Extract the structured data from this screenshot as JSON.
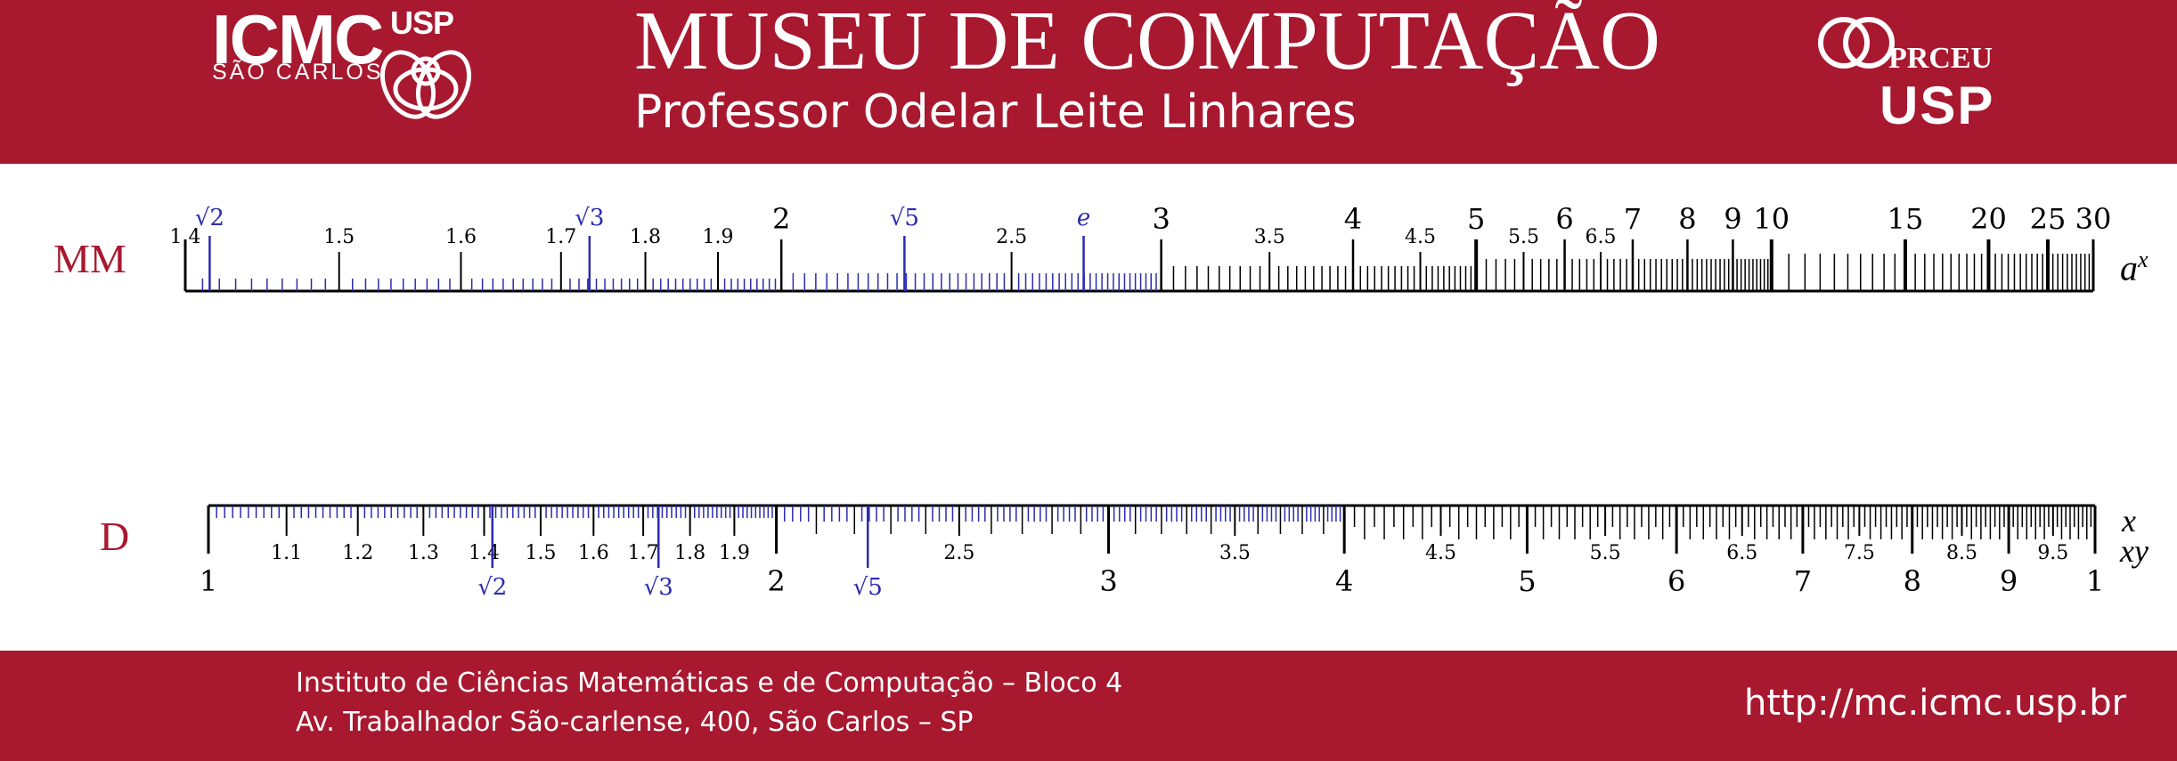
{
  "header": {
    "logo_icmc": "ICMC",
    "logo_usp_small": "USP",
    "logo_sao_carlos": "SÃO CARLOS",
    "title": "MUSEU DE COMPUTAÇÃO",
    "subtitle": "Professor Odelar Leite Linhares",
    "logo_prceu": "PRCEU",
    "logo_usp": "USP"
  },
  "footer": {
    "address_line1": "Instituto de Ciências Matemáticas e de Computação – Bloco 4",
    "address_line2": "Av. Trabalhador São-carlense, 400, São Carlos – SP",
    "url": "http://mc.icmc.usp.br"
  },
  "colors": {
    "brand": "#a8182f",
    "special_mark": "#2b2bb0",
    "ink": "#000000"
  },
  "scales": {
    "mm": {
      "name": "MM",
      "right_label_base": "a",
      "right_label_exp": "x",
      "range": [
        1.4,
        30
      ],
      "major": [
        {
          "v": 2,
          "t": "2"
        },
        {
          "v": 3,
          "t": "3"
        },
        {
          "v": 4,
          "t": "4"
        },
        {
          "v": 5,
          "t": "5"
        },
        {
          "v": 6,
          "t": "6"
        },
        {
          "v": 7,
          "t": "7"
        },
        {
          "v": 8,
          "t": "8"
        },
        {
          "v": 9,
          "t": "9"
        },
        {
          "v": 10,
          "t": "10"
        },
        {
          "v": 15,
          "t": "15"
        },
        {
          "v": 20,
          "t": "20"
        },
        {
          "v": 25,
          "t": "25"
        },
        {
          "v": 30,
          "t": "30"
        }
      ],
      "minor_labels": [
        {
          "v": 1.4,
          "t": "1.4"
        },
        {
          "v": 1.5,
          "t": "1.5"
        },
        {
          "v": 1.6,
          "t": "1.6"
        },
        {
          "v": 1.7,
          "t": "1.7"
        },
        {
          "v": 1.8,
          "t": "1.8"
        },
        {
          "v": 1.9,
          "t": "1.9"
        },
        {
          "v": 2.5,
          "t": "2.5"
        },
        {
          "v": 3.5,
          "t": "3.5"
        },
        {
          "v": 4.5,
          "t": "4.5"
        },
        {
          "v": 5.5,
          "t": "5.5"
        },
        {
          "v": 6.5,
          "t": "6.5"
        }
      ],
      "special": [
        {
          "v": 1.41421,
          "t": "√2"
        },
        {
          "v": 1.73205,
          "t": "√3"
        },
        {
          "v": 2.23607,
          "t": "√5"
        },
        {
          "v": 2.71828,
          "t": "e"
        }
      ]
    },
    "d": {
      "name": "D",
      "right_label_top": "x",
      "right_label_bottom": "xy",
      "range": [
        1,
        10
      ],
      "major": [
        {
          "v": 1,
          "t": "1"
        },
        {
          "v": 2,
          "t": "2"
        },
        {
          "v": 3,
          "t": "3"
        },
        {
          "v": 4,
          "t": "4"
        },
        {
          "v": 5,
          "t": "5"
        },
        {
          "v": 6,
          "t": "6"
        },
        {
          "v": 7,
          "t": "7"
        },
        {
          "v": 8,
          "t": "8"
        },
        {
          "v": 9,
          "t": "9"
        },
        {
          "v": 10,
          "t": "1"
        }
      ],
      "minor_labels": [
        {
          "v": 1.1,
          "t": "1.1"
        },
        {
          "v": 1.2,
          "t": "1.2"
        },
        {
          "v": 1.3,
          "t": "1.3"
        },
        {
          "v": 1.4,
          "t": "1.4"
        },
        {
          "v": 1.5,
          "t": "1.5"
        },
        {
          "v": 1.6,
          "t": "1.6"
        },
        {
          "v": 1.7,
          "t": "1.7"
        },
        {
          "v": 1.8,
          "t": "1.8"
        },
        {
          "v": 1.9,
          "t": "1.9"
        },
        {
          "v": 2.5,
          "t": "2.5"
        },
        {
          "v": 3.5,
          "t": "3.5"
        },
        {
          "v": 4.5,
          "t": "4.5"
        },
        {
          "v": 5.5,
          "t": "5.5"
        },
        {
          "v": 6.5,
          "t": "6.5"
        },
        {
          "v": 7.5,
          "t": "7.5"
        },
        {
          "v": 8.5,
          "t": "8.5"
        },
        {
          "v": 9.5,
          "t": "9.5"
        }
      ],
      "special": [
        {
          "v": 1.41421,
          "t": "√2"
        },
        {
          "v": 1.73205,
          "t": "√3"
        },
        {
          "v": 2.23607,
          "t": "√5"
        }
      ]
    }
  }
}
